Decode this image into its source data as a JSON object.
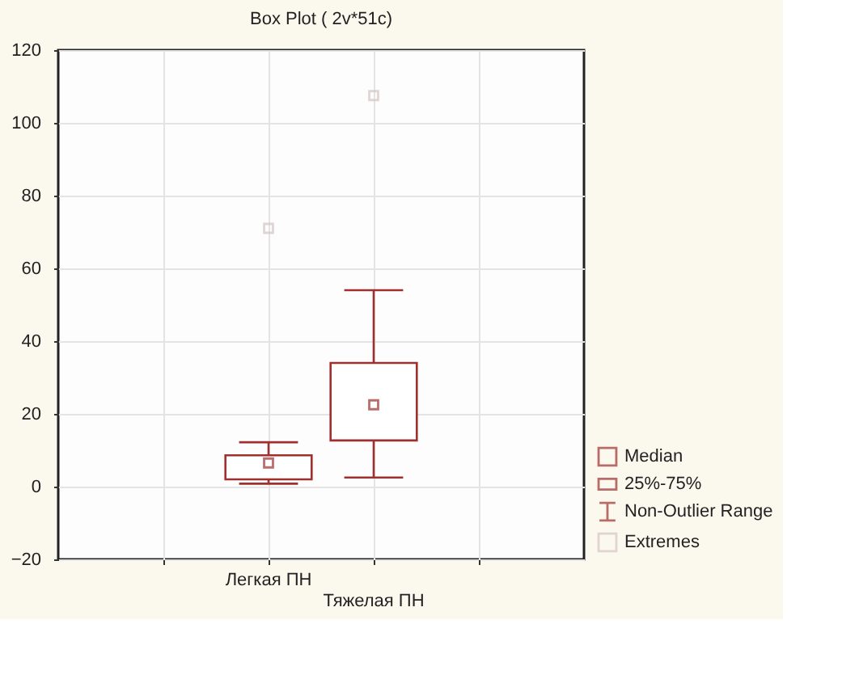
{
  "chart_data": {
    "type": "box",
    "title": "Box Plot ( 2v*51c)",
    "categories": [
      "Легкая ПН",
      "Тяжелая ПН"
    ],
    "series": [
      {
        "name": "Median",
        "type": "box",
        "color": "#9e3030",
        "values": [
          null,
          null
        ]
      },
      {
        "name": "25%-75%",
        "type": "box",
        "color": "#9e3030",
        "boxes": [
          {
            "low": 0.8,
            "q1": 2,
            "median": 6.5,
            "q3": 8.6,
            "high": 12.2
          },
          {
            "low": 2.5,
            "q1": 12.7,
            "median": 22.5,
            "q3": 34,
            "high": 54
          }
        ]
      },
      {
        "name": "Non-Outlier Range",
        "type": "box",
        "color": "#9e3030",
        "values": [
          null,
          null
        ]
      },
      {
        "name": "Extremes",
        "type": "scatter",
        "color": "#d6c4c4",
        "values": [
          71,
          107.5
        ]
      }
    ],
    "ylim": [
      -20,
      120
    ],
    "yticks": [
      -20,
      0,
      20,
      40,
      60,
      80,
      100,
      120
    ],
    "grid": true,
    "legend": "bottom right"
  }
}
